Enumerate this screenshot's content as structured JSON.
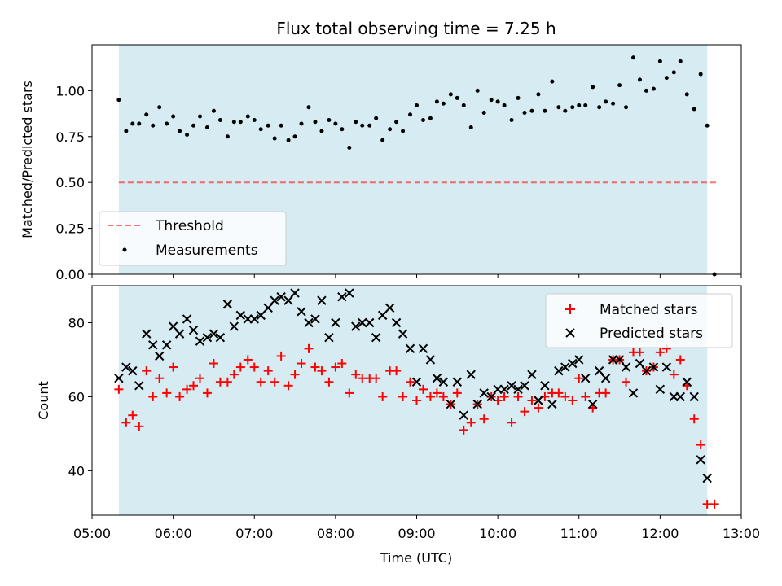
{
  "chart_data": [
    {
      "type": "scatter",
      "title": "Flux total observing time = 7.25 h",
      "ylabel": "Matched/Predicted stars",
      "xlabel": "",
      "xlim": [
        5.0,
        13.0
      ],
      "ylim": [
        0.0,
        1.25
      ],
      "ytick_labels": [
        "0.00",
        "0.25",
        "0.50",
        "0.75",
        "1.00"
      ],
      "ytick_values": [
        0.0,
        0.25,
        0.5,
        0.75,
        1.0
      ],
      "shaded_span": [
        5.33,
        12.58
      ],
      "threshold": 0.5,
      "legend": {
        "position": "lower-left",
        "entries": [
          "Threshold",
          "Measurements"
        ]
      },
      "series": [
        {
          "name": "Measurements",
          "x": [
            5.33,
            5.42,
            5.5,
            5.58,
            5.67,
            5.75,
            5.83,
            5.92,
            6.0,
            6.08,
            6.17,
            6.25,
            6.33,
            6.42,
            6.5,
            6.58,
            6.67,
            6.75,
            6.83,
            6.92,
            7.0,
            7.08,
            7.17,
            7.25,
            7.33,
            7.42,
            7.5,
            7.58,
            7.67,
            7.75,
            7.83,
            7.92,
            8.0,
            8.08,
            8.17,
            8.25,
            8.33,
            8.42,
            8.5,
            8.58,
            8.67,
            8.75,
            8.83,
            8.92,
            9.0,
            9.08,
            9.17,
            9.25,
            9.33,
            9.42,
            9.5,
            9.58,
            9.67,
            9.75,
            9.83,
            9.92,
            10.0,
            10.08,
            10.17,
            10.25,
            10.33,
            10.42,
            10.5,
            10.58,
            10.67,
            10.75,
            10.83,
            10.92,
            11.0,
            11.08,
            11.17,
            11.25,
            11.33,
            11.42,
            11.5,
            11.58,
            11.67,
            11.75,
            11.83,
            11.92,
            12.0,
            12.08,
            12.17,
            12.25,
            12.33,
            12.42,
            12.5,
            12.58,
            12.67
          ],
          "y": [
            0.95,
            0.78,
            0.82,
            0.82,
            0.87,
            0.81,
            0.91,
            0.82,
            0.86,
            0.78,
            0.76,
            0.81,
            0.86,
            0.8,
            0.89,
            0.84,
            0.75,
            0.83,
            0.83,
            0.86,
            0.84,
            0.79,
            0.81,
            0.74,
            0.81,
            0.73,
            0.75,
            0.82,
            0.91,
            0.83,
            0.78,
            0.84,
            0.82,
            0.79,
            0.69,
            0.83,
            0.81,
            0.81,
            0.85,
            0.73,
            0.79,
            0.83,
            0.78,
            0.87,
            0.92,
            0.84,
            0.85,
            0.94,
            0.93,
            0.98,
            0.96,
            0.92,
            0.8,
            1.0,
            0.88,
            0.95,
            0.94,
            0.92,
            0.84,
            0.96,
            0.88,
            0.89,
            0.98,
            0.89,
            1.05,
            0.91,
            0.89,
            0.91,
            0.92,
            0.92,
            1.02,
            0.91,
            0.94,
            0.93,
            1.03,
            0.91,
            1.18,
            1.06,
            1.0,
            1.01,
            1.16,
            1.07,
            1.1,
            1.16,
            0.98,
            0.9,
            1.09,
            0.81,
            0.0
          ]
        }
      ]
    },
    {
      "type": "scatter",
      "title": "",
      "ylabel": "Count",
      "xlabel": "Time (UTC)",
      "xlim": [
        5.0,
        13.0
      ],
      "ylim": [
        28,
        90
      ],
      "ytick_labels": [
        "40",
        "60",
        "80"
      ],
      "ytick_values": [
        40,
        60,
        80
      ],
      "xtick_labels": [
        "05:00",
        "06:00",
        "07:00",
        "08:00",
        "09:00",
        "10:00",
        "11:00",
        "12:00",
        "13:00"
      ],
      "xtick_values": [
        5,
        6,
        7,
        8,
        9,
        10,
        11,
        12,
        13
      ],
      "shaded_span": [
        5.33,
        12.58
      ],
      "legend": {
        "position": "top-right",
        "entries": [
          "Matched stars",
          "Predicted stars"
        ]
      },
      "series": [
        {
          "name": "Matched stars",
          "color": "#ff0000",
          "x": [
            5.33,
            5.42,
            5.5,
            5.58,
            5.67,
            5.75,
            5.83,
            5.92,
            6.0,
            6.08,
            6.17,
            6.25,
            6.33,
            6.42,
            6.5,
            6.58,
            6.67,
            6.75,
            6.83,
            6.92,
            7.0,
            7.08,
            7.17,
            7.25,
            7.33,
            7.42,
            7.5,
            7.58,
            7.67,
            7.75,
            7.83,
            7.92,
            8.0,
            8.08,
            8.17,
            8.25,
            8.33,
            8.42,
            8.5,
            8.58,
            8.67,
            8.75,
            8.83,
            8.92,
            9.0,
            9.08,
            9.17,
            9.25,
            9.33,
            9.42,
            9.5,
            9.58,
            9.67,
            9.75,
            9.83,
            9.92,
            10.0,
            10.08,
            10.17,
            10.25,
            10.33,
            10.42,
            10.5,
            10.58,
            10.67,
            10.75,
            10.83,
            10.92,
            11.0,
            11.08,
            11.17,
            11.25,
            11.33,
            11.42,
            11.5,
            11.58,
            11.67,
            11.75,
            11.83,
            11.92,
            12.0,
            12.08,
            12.17,
            12.25,
            12.33,
            12.42,
            12.5,
            12.58,
            12.67
          ],
          "y": [
            62,
            53,
            55,
            52,
            67,
            60,
            65,
            61,
            68,
            60,
            62,
            63,
            65,
            61,
            69,
            64,
            64,
            66,
            68,
            70,
            68,
            64,
            67,
            64,
            71,
            63,
            66,
            69,
            73,
            68,
            67,
            64,
            68,
            69,
            61,
            66,
            65,
            65,
            65,
            60,
            67,
            67,
            60,
            64,
            59,
            62,
            60,
            61,
            60,
            58,
            61,
            51,
            53,
            58,
            54,
            60,
            59,
            60,
            53,
            60,
            56,
            59,
            57,
            60,
            61,
            61,
            60,
            59,
            65,
            60,
            57,
            61,
            61,
            70,
            70,
            64,
            72,
            72,
            67,
            68,
            72,
            73,
            66,
            70,
            63,
            54,
            47,
            31,
            31
          ]
        },
        {
          "name": "Predicted stars",
          "color": "#000000",
          "x": [
            5.33,
            5.42,
            5.5,
            5.58,
            5.67,
            5.75,
            5.83,
            5.92,
            6.0,
            6.08,
            6.17,
            6.25,
            6.33,
            6.42,
            6.5,
            6.58,
            6.67,
            6.75,
            6.83,
            6.92,
            7.0,
            7.08,
            7.17,
            7.25,
            7.33,
            7.42,
            7.5,
            7.58,
            7.67,
            7.75,
            7.83,
            7.92,
            8.0,
            8.08,
            8.17,
            8.25,
            8.33,
            8.42,
            8.5,
            8.58,
            8.67,
            8.75,
            8.83,
            8.92,
            9.0,
            9.08,
            9.17,
            9.25,
            9.33,
            9.42,
            9.5,
            9.58,
            9.67,
            9.75,
            9.83,
            9.92,
            10.0,
            10.08,
            10.17,
            10.25,
            10.33,
            10.42,
            10.5,
            10.58,
            10.67,
            10.75,
            10.83,
            10.92,
            11.0,
            11.08,
            11.17,
            11.25,
            11.33,
            11.42,
            11.5,
            11.58,
            11.67,
            11.75,
            11.83,
            11.92,
            12.0,
            12.08,
            12.17,
            12.25,
            12.33,
            12.42,
            12.5,
            12.58
          ],
          "y": [
            65,
            68,
            67,
            63,
            77,
            74,
            71,
            74,
            79,
            77,
            81,
            78,
            75,
            76,
            77,
            76,
            85,
            79,
            82,
            81,
            81,
            82,
            84,
            86,
            87,
            86,
            88,
            83,
            80,
            81,
            86,
            76,
            80,
            87,
            88,
            79,
            80,
            80,
            76,
            82,
            84,
            80,
            77,
            73,
            64,
            73,
            70,
            65,
            64,
            58,
            64,
            55,
            66,
            58,
            61,
            60,
            62,
            62,
            63,
            62,
            63,
            66,
            59,
            63,
            58,
            67,
            68,
            69,
            70,
            65,
            58,
            67,
            65,
            70,
            70,
            68,
            61,
            69,
            67,
            68,
            62,
            68,
            60,
            60,
            64,
            60,
            43,
            38
          ]
        }
      ]
    }
  ]
}
